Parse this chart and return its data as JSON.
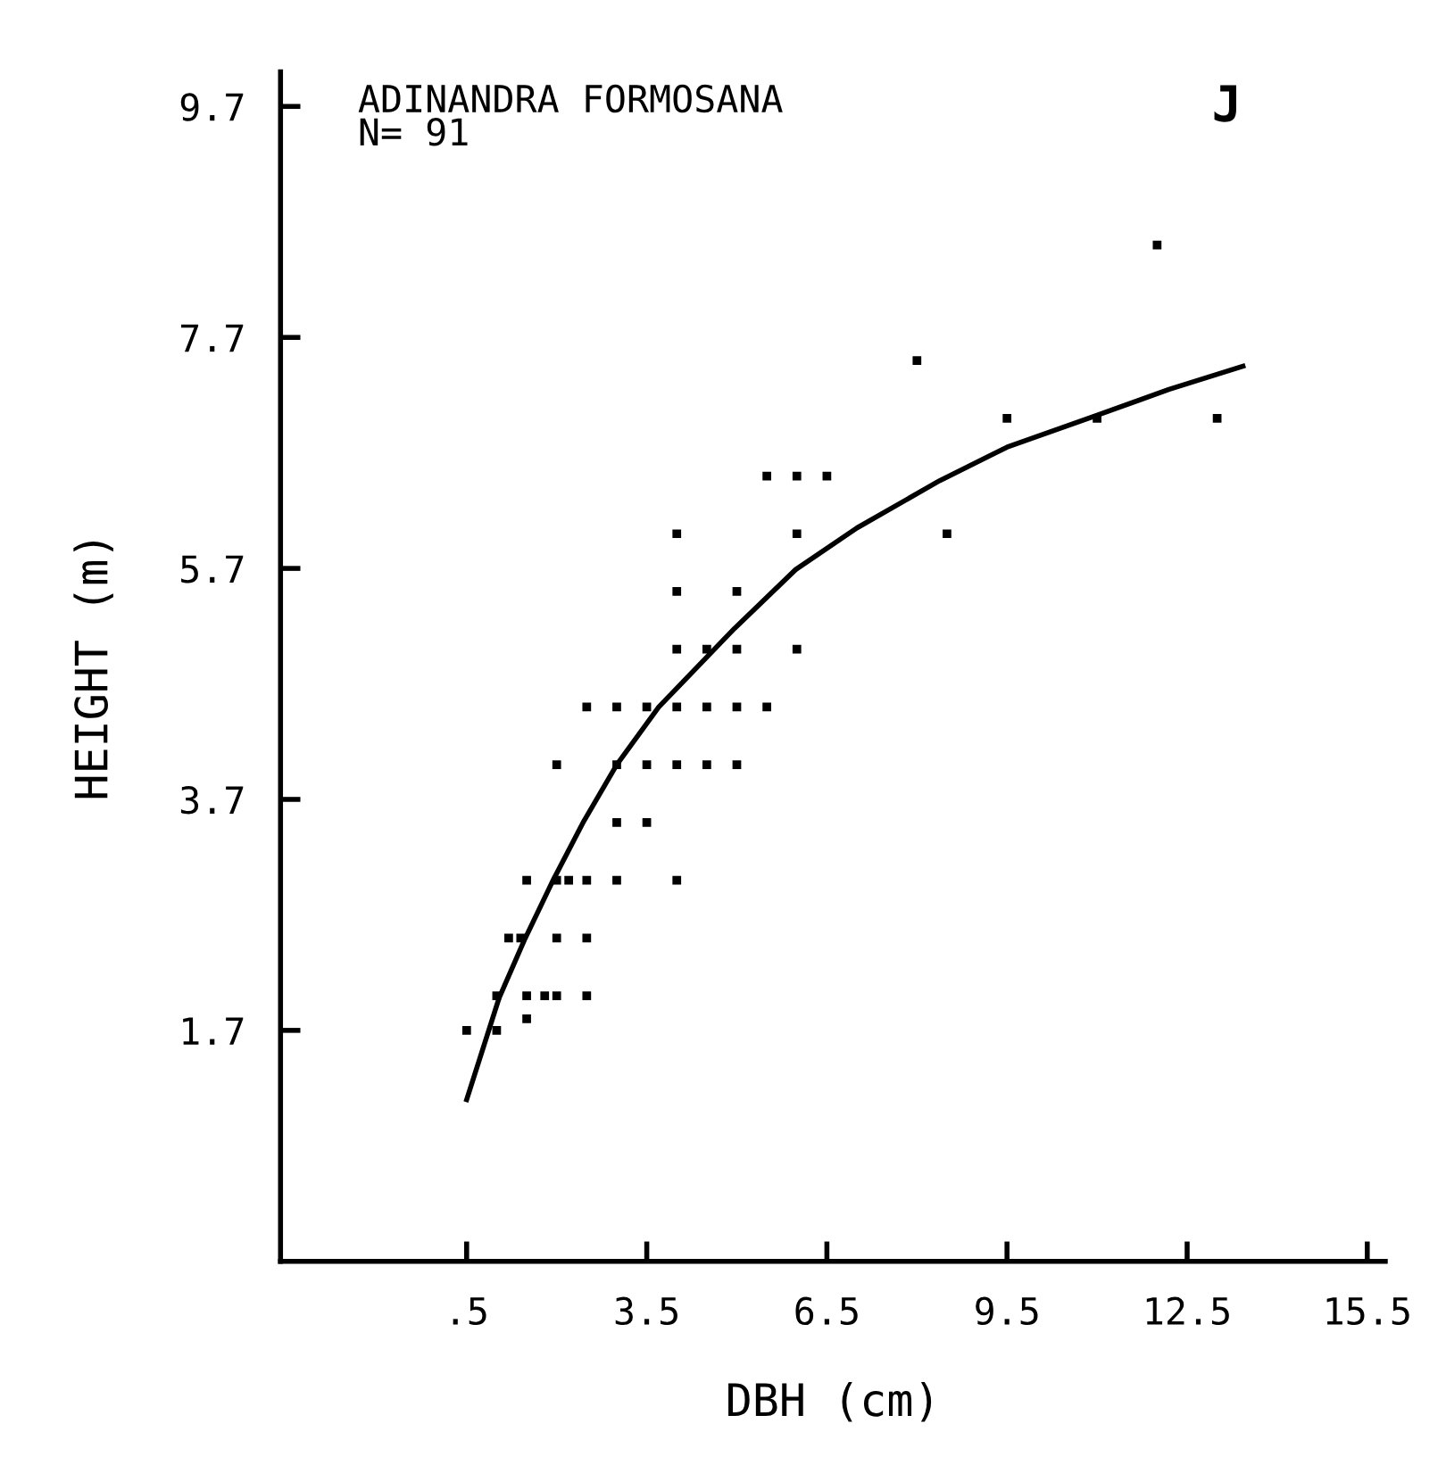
{
  "chart_data": {
    "type": "scatter",
    "xlabel": "DBH (cm)",
    "ylabel": "HEIGHT (m)",
    "annotations": [
      "ADINANDRA FORMOSANA\nN= 91",
      "J"
    ],
    "xlim": [
      -2.6,
      15.8
    ],
    "ylim": [
      -0.3,
      10.0
    ],
    "xticks": [
      {
        "value": 0.5,
        "label": ".5"
      },
      3.5,
      6.5,
      9.5,
      12.5,
      15.5
    ],
    "yticks": [
      1.7,
      3.7,
      5.7,
      7.7,
      9.7
    ],
    "grid": false,
    "legend": false,
    "series": [
      {
        "color": "#000000",
        "marker": "square",
        "x": [
          2.5,
          3.0,
          3.5,
          4.0,
          4.5,
          5.0,
          5.5,
          2.0,
          3.0,
          3.5,
          4.0,
          4.5,
          5.0,
          3.0,
          3.5,
          1.5,
          2.0,
          2.2,
          2.5,
          3.0,
          4.0,
          1.2,
          1.4,
          2.0,
          2.5,
          1.0,
          1.5,
          1.8,
          2.0,
          2.5,
          1.5,
          0.5,
          1.0,
          5.5,
          6.0,
          6.5,
          4.0,
          6.0,
          4.0,
          5.0,
          4.0,
          4.5,
          5.0,
          6.0,
          8.5,
          12.0,
          8.0,
          9.5,
          11.0,
          13.0
        ],
        "values": [
          4.5,
          4.5,
          4.5,
          4.5,
          4.5,
          4.5,
          4.5,
          4.0,
          4.0,
          4.0,
          4.0,
          4.0,
          4.0,
          3.5,
          3.5,
          3.0,
          3.0,
          3.0,
          3.0,
          3.0,
          3.0,
          2.5,
          2.5,
          2.5,
          2.5,
          2.0,
          2.0,
          2.0,
          2.0,
          2.0,
          1.8,
          1.7,
          1.7,
          6.5,
          6.5,
          6.5,
          6.0,
          6.0,
          5.5,
          5.5,
          5.0,
          5.0,
          5.0,
          5.0,
          6.0,
          8.5,
          7.5,
          7.0,
          7.0,
          7.0
        ]
      },
      {
        "type": "line",
        "color": "#000000",
        "x": [
          0.5,
          1.04,
          1.46,
          1.93,
          2.45,
          3.0,
          3.7,
          4.96,
          5.98,
          7.0,
          8.38,
          9.5,
          10.97,
          12.2,
          13.43
        ],
        "values": [
          1.1,
          1.98,
          2.48,
          2.99,
          3.51,
          4.0,
          4.5,
          5.18,
          5.69,
          6.05,
          6.46,
          6.75,
          7.02,
          7.25,
          7.45
        ]
      }
    ]
  }
}
